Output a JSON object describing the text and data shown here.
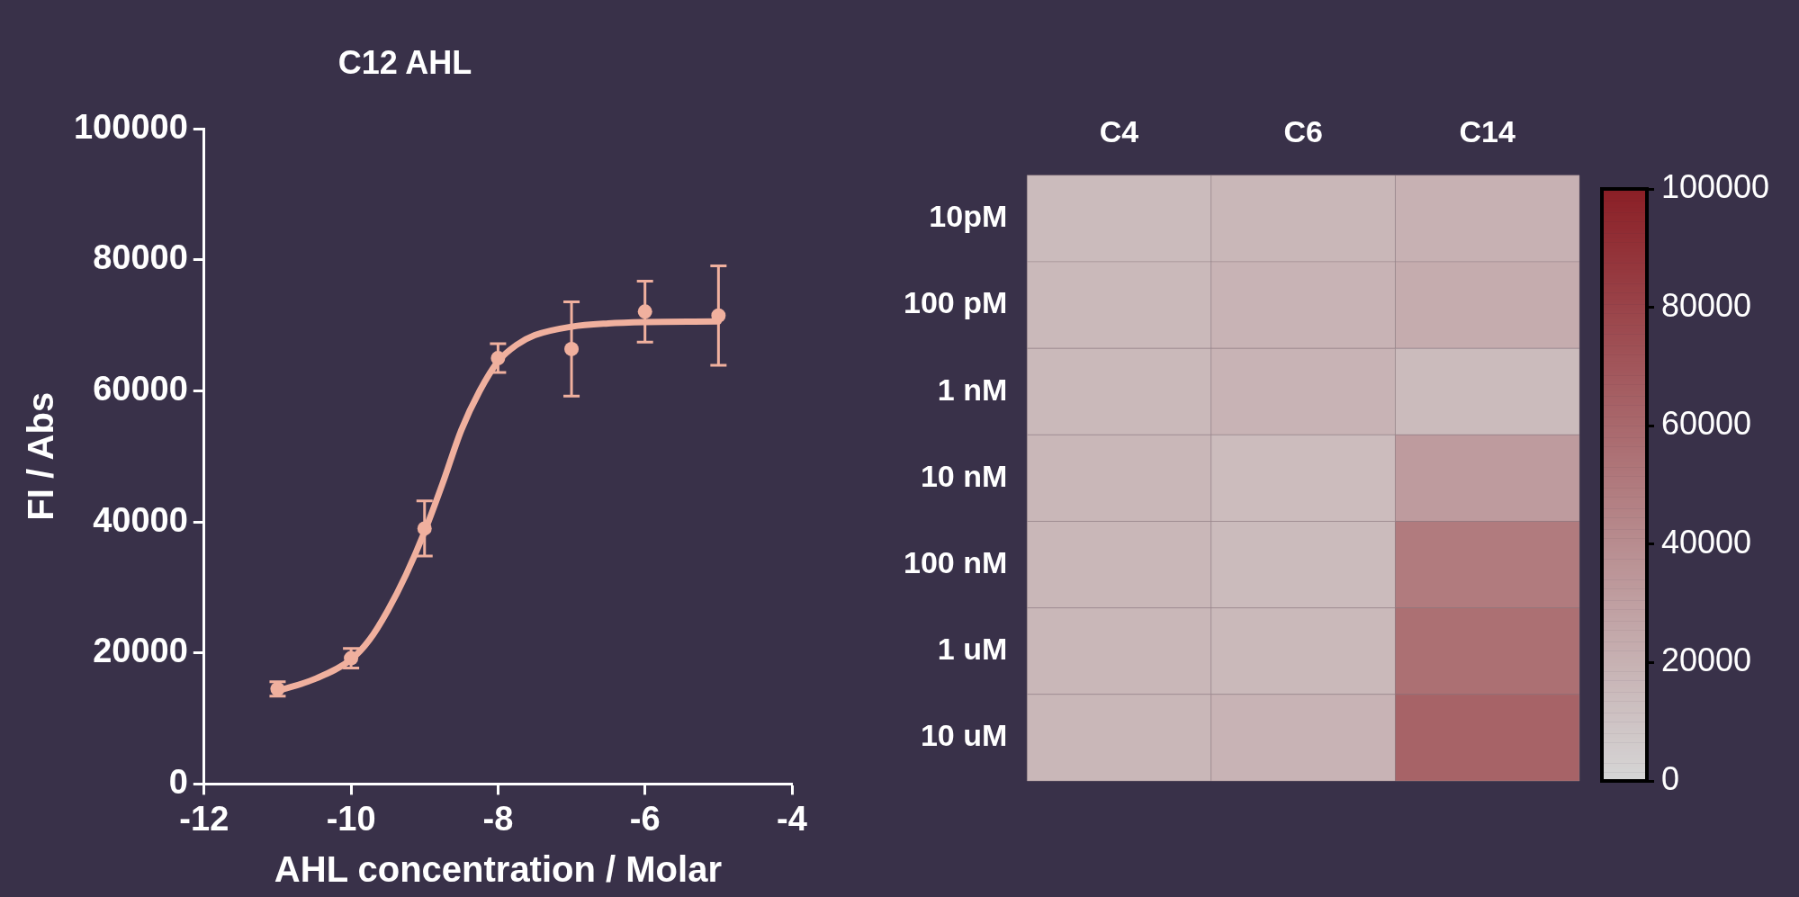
{
  "chart_data": [
    {
      "type": "scatter",
      "title": "C12 AHL",
      "xlabel": "AHL concentration / Molar",
      "ylabel": "FI / Abs",
      "xlim": [
        -12,
        -4
      ],
      "xticks": [
        -12,
        -10,
        -8,
        -6,
        -4
      ],
      "ylim": [
        0,
        100000
      ],
      "yticks": [
        0,
        20000,
        40000,
        60000,
        80000,
        100000
      ],
      "grid": false,
      "legend": false,
      "series": [
        {
          "type": "scatter",
          "marker": "circle",
          "color": "#f0b09e",
          "x": [
            -11,
            -10,
            -9,
            -8,
            -7,
            -6,
            -5
          ],
          "values": [
            14500,
            19200,
            39000,
            65000,
            66400,
            72100,
            71500
          ],
          "errors": [
            1100,
            1500,
            4200,
            2200,
            7200,
            4650,
            7600
          ]
        },
        {
          "type": "line",
          "marker": "none",
          "line_style": "solid",
          "color": "#f0b09e",
          "x": [
            -11,
            -10.5,
            -10,
            -9.75,
            -9.5,
            -9.25,
            -9,
            -8.75,
            -8.5,
            -8.25,
            -8,
            -7.75,
            -7.5,
            -7,
            -6.5,
            -6,
            -5
          ],
          "values": [
            14200,
            16000,
            19000,
            22000,
            26500,
            32000,
            38500,
            46000,
            54000,
            60000,
            64500,
            67000,
            68500,
            69800,
            70300,
            70500,
            70600
          ]
        }
      ]
    },
    {
      "type": "heatmap",
      "categories": [
        "C4",
        "C6",
        "C14"
      ],
      "y_categories": [
        "10pM",
        "100 pM",
        "1 nM",
        "10 nM",
        "100 nM",
        "1 uM",
        "10 uM"
      ],
      "clim": [
        0,
        100000
      ],
      "cticks": [
        0,
        20000,
        40000,
        60000,
        80000,
        100000
      ],
      "cells": [
        [
          15000,
          17000,
          20000
        ],
        [
          16000,
          19000,
          23000
        ],
        [
          16000,
          19000,
          15000
        ],
        [
          17000,
          14000,
          32000
        ],
        [
          17000,
          15000,
          50000
        ],
        [
          17000,
          16000,
          56000
        ],
        [
          17000,
          19000,
          63000
        ]
      ]
    }
  ]
}
